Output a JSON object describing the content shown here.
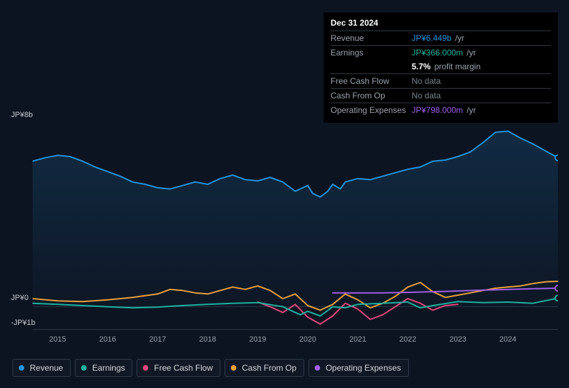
{
  "tooltip": {
    "date": "Dec 31 2024",
    "rows": [
      {
        "label": "Revenue",
        "value": "JP¥6.449b",
        "color": "#2394df",
        "suffix": "/yr"
      },
      {
        "label": "Earnings",
        "value": "JP¥366.000m",
        "color": "#1bb3a0",
        "suffix": "/yr",
        "subline": {
          "value": "5.7%",
          "suffix": "profit margin"
        }
      },
      {
        "label": "Free Cash Flow",
        "value": "No data",
        "nodata": true
      },
      {
        "label": "Cash From Op",
        "value": "No data",
        "nodata": true
      },
      {
        "label": "Operating Expenses",
        "value": "JP¥798.000m",
        "color": "#a15fe8",
        "suffix": "/yr"
      }
    ]
  },
  "chart": {
    "background": "#0d1421",
    "plot_bg_top": "#0f1826",
    "plot_bg_bottom": "#11203a",
    "grid_color": "#1a2430",
    "text_color": "#c7ccd1",
    "x_years": [
      "2015",
      "2016",
      "2017",
      "2018",
      "2019",
      "2020",
      "2021",
      "2022",
      "2023",
      "2024"
    ],
    "y_top_label": "JP¥8b",
    "y_zero_label": "JP¥0",
    "y_bottom_label": "-JP¥1b",
    "y_max": 8.0,
    "y_min": -1.0,
    "x_min": 2014.5,
    "x_max": 2025.0,
    "series": {
      "revenue": {
        "label": "Revenue",
        "color": "#2394df",
        "fill": true,
        "width": 2,
        "data": [
          [
            2014.5,
            6.3
          ],
          [
            2014.75,
            6.45
          ],
          [
            2015.0,
            6.55
          ],
          [
            2015.25,
            6.5
          ],
          [
            2015.5,
            6.3
          ],
          [
            2015.75,
            6.05
          ],
          [
            2016.0,
            5.85
          ],
          [
            2016.25,
            5.65
          ],
          [
            2016.5,
            5.4
          ],
          [
            2016.75,
            5.3
          ],
          [
            2017.0,
            5.15
          ],
          [
            2017.25,
            5.1
          ],
          [
            2017.5,
            5.25
          ],
          [
            2017.75,
            5.4
          ],
          [
            2018.0,
            5.3
          ],
          [
            2018.25,
            5.55
          ],
          [
            2018.5,
            5.7
          ],
          [
            2018.75,
            5.5
          ],
          [
            2019.0,
            5.45
          ],
          [
            2019.25,
            5.6
          ],
          [
            2019.5,
            5.4
          ],
          [
            2019.75,
            5.0
          ],
          [
            2020.0,
            5.25
          ],
          [
            2020.1,
            4.9
          ],
          [
            2020.25,
            4.75
          ],
          [
            2020.4,
            5.0
          ],
          [
            2020.5,
            5.3
          ],
          [
            2020.65,
            5.1
          ],
          [
            2020.75,
            5.4
          ],
          [
            2021.0,
            5.55
          ],
          [
            2021.25,
            5.5
          ],
          [
            2021.5,
            5.65
          ],
          [
            2021.75,
            5.8
          ],
          [
            2022.0,
            5.95
          ],
          [
            2022.25,
            6.05
          ],
          [
            2022.5,
            6.3
          ],
          [
            2022.75,
            6.35
          ],
          [
            2023.0,
            6.5
          ],
          [
            2023.25,
            6.7
          ],
          [
            2023.5,
            7.1
          ],
          [
            2023.75,
            7.55
          ],
          [
            2024.0,
            7.6
          ],
          [
            2024.25,
            7.3
          ],
          [
            2024.5,
            7.05
          ],
          [
            2024.75,
            6.75
          ],
          [
            2025.0,
            6.45
          ]
        ],
        "end_marker": true
      },
      "earnings": {
        "label": "Earnings",
        "color": "#1bb3a0",
        "width": 2,
        "data": [
          [
            2014.5,
            0.15
          ],
          [
            2015.0,
            0.1
          ],
          [
            2015.5,
            0.05
          ],
          [
            2016.0,
            0.0
          ],
          [
            2016.5,
            -0.05
          ],
          [
            2017.0,
            -0.02
          ],
          [
            2017.5,
            0.05
          ],
          [
            2018.0,
            0.1
          ],
          [
            2018.5,
            0.15
          ],
          [
            2019.0,
            0.18
          ],
          [
            2019.5,
            0.0
          ],
          [
            2019.85,
            -0.35
          ],
          [
            2020.0,
            -0.2
          ],
          [
            2020.25,
            -0.4
          ],
          [
            2020.5,
            0.0
          ],
          [
            2020.75,
            -0.05
          ],
          [
            2021.0,
            0.1
          ],
          [
            2021.5,
            0.15
          ],
          [
            2022.0,
            0.2
          ],
          [
            2022.25,
            -0.05
          ],
          [
            2022.5,
            0.05
          ],
          [
            2023.0,
            0.22
          ],
          [
            2023.5,
            0.18
          ],
          [
            2024.0,
            0.2
          ],
          [
            2024.5,
            0.15
          ],
          [
            2025.0,
            0.37
          ]
        ],
        "end_marker": true
      },
      "fcf": {
        "label": "Free Cash Flow",
        "color": "#e8467e",
        "width": 2,
        "data": [
          [
            2019.0,
            0.2
          ],
          [
            2019.25,
            0.0
          ],
          [
            2019.5,
            -0.25
          ],
          [
            2019.75,
            0.1
          ],
          [
            2020.0,
            -0.45
          ],
          [
            2020.25,
            -0.75
          ],
          [
            2020.5,
            -0.4
          ],
          [
            2020.75,
            0.15
          ],
          [
            2021.0,
            -0.1
          ],
          [
            2021.25,
            -0.55
          ],
          [
            2021.5,
            -0.35
          ],
          [
            2021.75,
            0.0
          ],
          [
            2022.0,
            0.35
          ],
          [
            2022.25,
            0.15
          ],
          [
            2022.5,
            -0.15
          ],
          [
            2022.75,
            0.05
          ],
          [
            2023.0,
            0.1
          ]
        ]
      },
      "cfo": {
        "label": "Cash From Op",
        "color": "#e8a13c",
        "width": 2,
        "data": [
          [
            2014.5,
            0.35
          ],
          [
            2015.0,
            0.25
          ],
          [
            2015.5,
            0.22
          ],
          [
            2016.0,
            0.3
          ],
          [
            2016.5,
            0.4
          ],
          [
            2017.0,
            0.55
          ],
          [
            2017.25,
            0.75
          ],
          [
            2017.5,
            0.7
          ],
          [
            2017.75,
            0.6
          ],
          [
            2018.0,
            0.55
          ],
          [
            2018.25,
            0.7
          ],
          [
            2018.5,
            0.85
          ],
          [
            2018.75,
            0.75
          ],
          [
            2019.0,
            0.9
          ],
          [
            2019.25,
            0.7
          ],
          [
            2019.5,
            0.35
          ],
          [
            2019.75,
            0.55
          ],
          [
            2020.0,
            0.05
          ],
          [
            2020.25,
            -0.15
          ],
          [
            2020.5,
            0.1
          ],
          [
            2020.75,
            0.55
          ],
          [
            2021.0,
            0.3
          ],
          [
            2021.25,
            -0.05
          ],
          [
            2021.5,
            0.15
          ],
          [
            2021.75,
            0.45
          ],
          [
            2022.0,
            0.85
          ],
          [
            2022.25,
            1.05
          ],
          [
            2022.5,
            0.65
          ],
          [
            2022.75,
            0.4
          ],
          [
            2023.0,
            0.5
          ],
          [
            2023.25,
            0.6
          ],
          [
            2023.5,
            0.7
          ],
          [
            2023.75,
            0.8
          ],
          [
            2024.0,
            0.85
          ],
          [
            2024.25,
            0.9
          ],
          [
            2024.5,
            1.0
          ],
          [
            2024.75,
            1.08
          ],
          [
            2025.0,
            1.1
          ]
        ]
      },
      "opex": {
        "label": "Operating Expenses",
        "color": "#a15fe8",
        "width": 2,
        "data": [
          [
            2020.5,
            0.6
          ],
          [
            2021.0,
            0.6
          ],
          [
            2021.5,
            0.6
          ],
          [
            2022.0,
            0.62
          ],
          [
            2022.5,
            0.65
          ],
          [
            2023.0,
            0.68
          ],
          [
            2023.5,
            0.72
          ],
          [
            2024.0,
            0.75
          ],
          [
            2024.5,
            0.78
          ],
          [
            2025.0,
            0.8
          ]
        ],
        "end_marker": true
      }
    },
    "legend_order": [
      "revenue",
      "earnings",
      "fcf",
      "cfo",
      "opex"
    ]
  }
}
